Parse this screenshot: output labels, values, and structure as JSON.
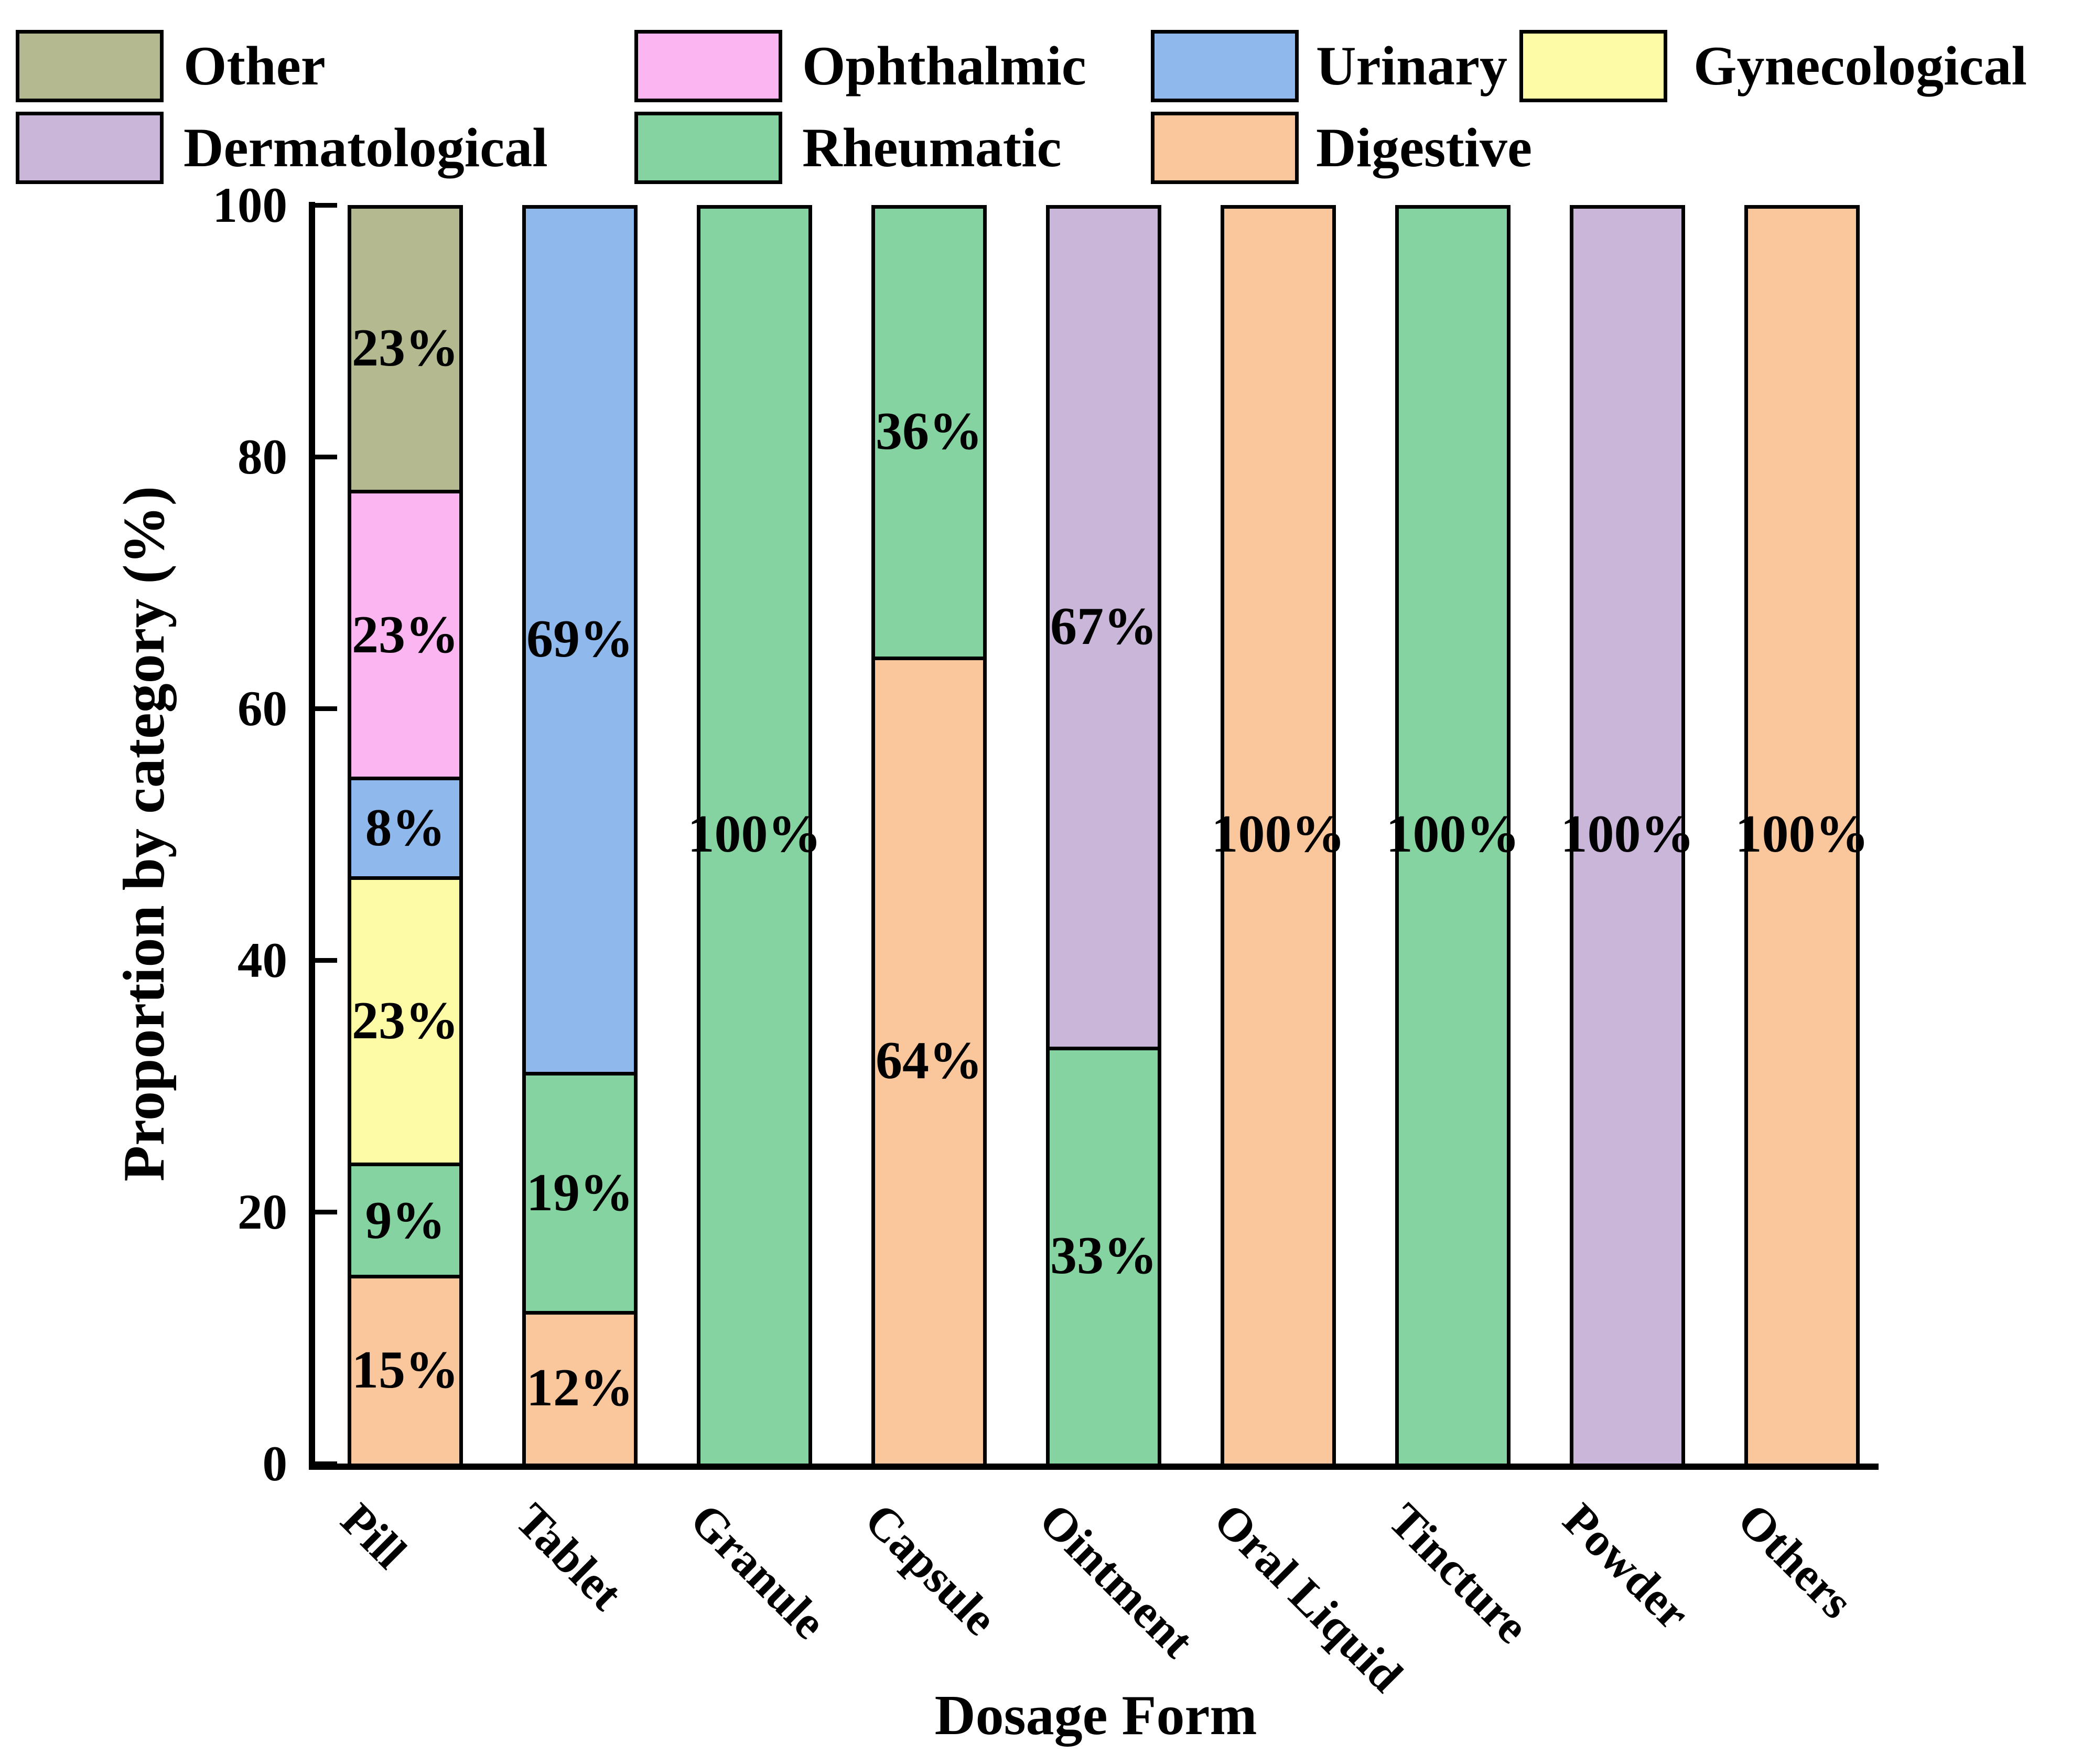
{
  "chart_data": {
    "type": "bar",
    "stacked": true,
    "title": "",
    "xlabel": "Dosage Form",
    "ylabel": "Proportion by category (%)",
    "ylim": [
      0,
      100
    ],
    "yticks": [
      "0",
      "20",
      "40",
      "60",
      "80",
      "100"
    ],
    "grid": false,
    "legend_position": "top",
    "legend_rows": [
      [
        "Other",
        "Ophthalmic",
        "Urinary",
        "Gynecological"
      ],
      [
        "Dermatological",
        "Rheumatic",
        "Digestive"
      ]
    ],
    "categories": [
      "Pill",
      "Tablet",
      "Granule",
      "Capsule",
      "Ointment",
      "Oral Liquid",
      "Tincture",
      "Powder",
      "Others"
    ],
    "stack_order_bottom_to_top": [
      "Digestive",
      "Rheumatic",
      "Gynecological",
      "Urinary",
      "Ophthalmic",
      "Dermatological",
      "Other"
    ],
    "series": [
      {
        "name": "Digestive",
        "color": "#FAC79C",
        "values": [
          15,
          12,
          0,
          64,
          0,
          100,
          0,
          0,
          100
        ]
      },
      {
        "name": "Rheumatic",
        "color": "#85D3A0",
        "values": [
          9,
          19,
          100,
          36,
          33,
          0,
          100,
          0,
          0
        ]
      },
      {
        "name": "Gynecological",
        "color": "#FDFBA6",
        "values": [
          23,
          0,
          0,
          0,
          0,
          0,
          0,
          0,
          0
        ]
      },
      {
        "name": "Urinary",
        "color": "#8FB8EC",
        "values": [
          8,
          69,
          0,
          0,
          0,
          0,
          0,
          0,
          0
        ]
      },
      {
        "name": "Ophthalmic",
        "color": "#FBB5F0",
        "values": [
          23,
          0,
          0,
          0,
          0,
          0,
          0,
          0,
          0
        ]
      },
      {
        "name": "Dermatological",
        "color": "#C9B6D9",
        "values": [
          0,
          0,
          0,
          0,
          67,
          0,
          0,
          100,
          0
        ]
      },
      {
        "name": "Other",
        "color": "#B4B98F",
        "values": [
          23,
          0,
          0,
          0,
          0,
          0,
          0,
          0,
          0
        ]
      }
    ],
    "segment_label_suffix": "%",
    "axis_color": "#000000",
    "text_color": "#000000"
  }
}
